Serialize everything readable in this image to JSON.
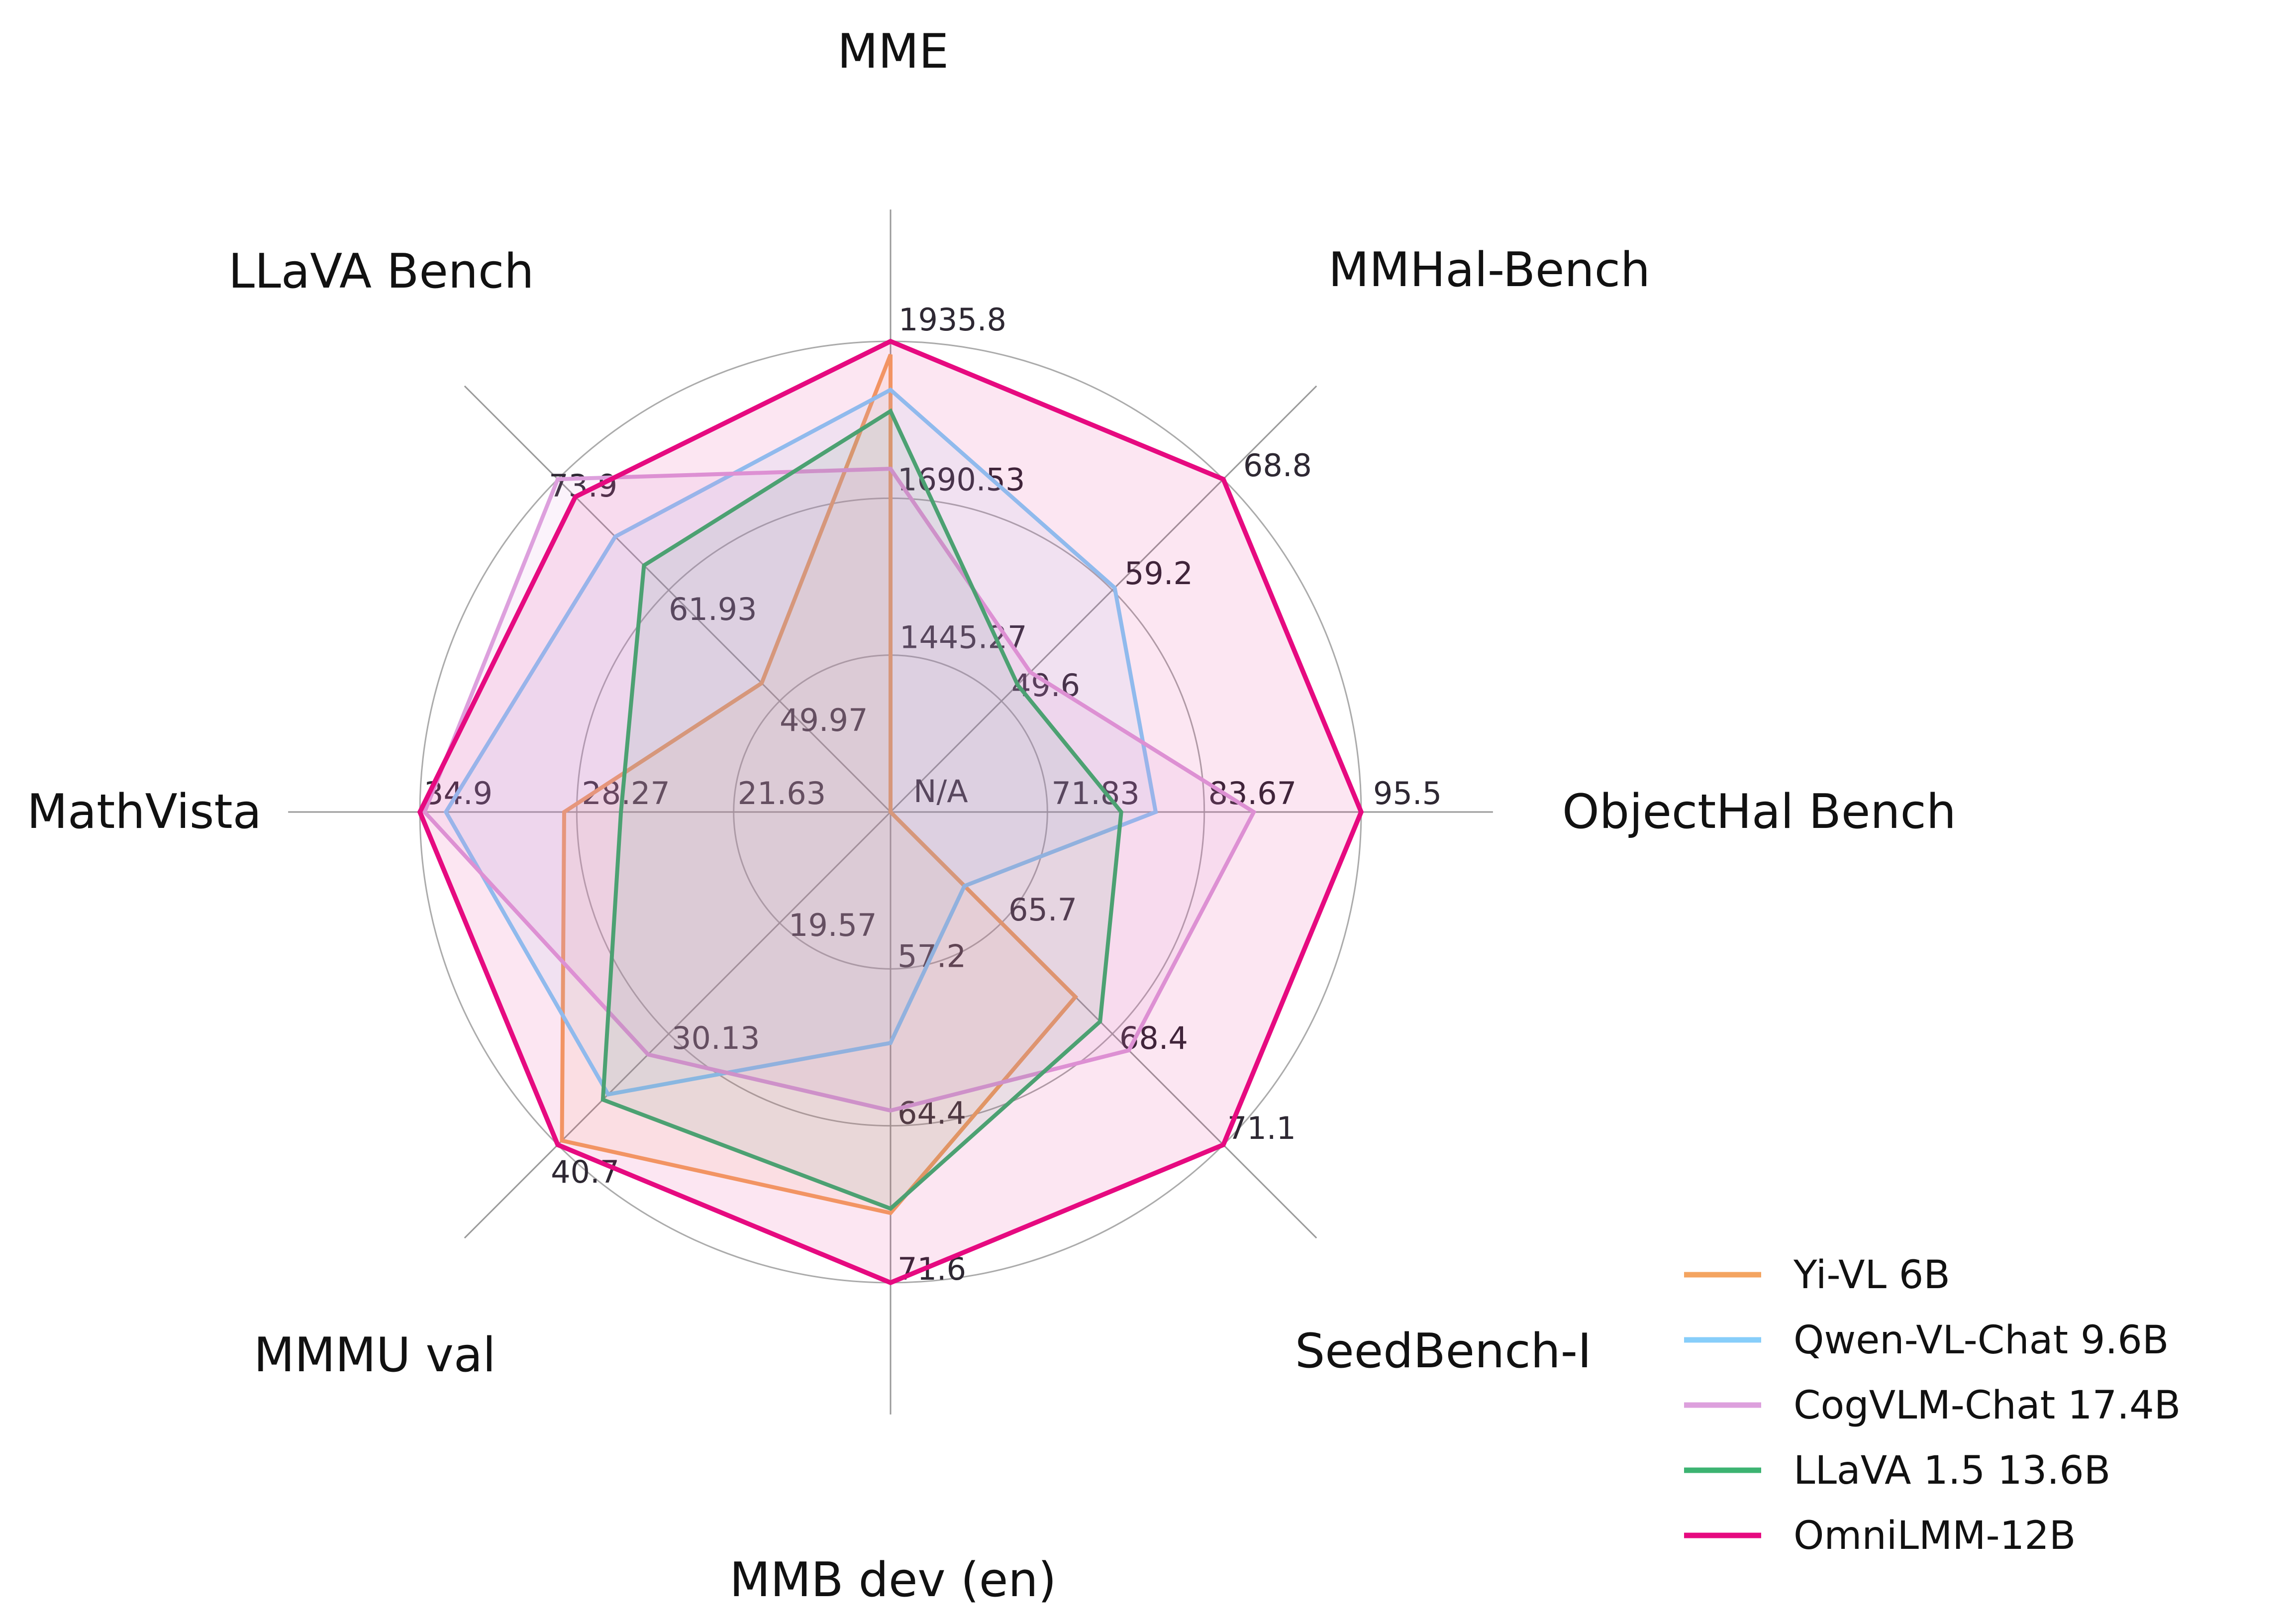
{
  "chart_data": {
    "type": "radar",
    "title": "",
    "grid": true,
    "rings": 3,
    "legend_position": "lower right",
    "center_label": "N/A",
    "axes": [
      {
        "label": "MME",
        "center_value": 1200.0,
        "max": 1935.8,
        "ticks": [
          "1445.27",
          "1690.53",
          "1935.8"
        ]
      },
      {
        "label": "MMHal-Bench",
        "center_value": 40.0,
        "max": 68.8,
        "ticks": [
          "49.6",
          "59.2",
          "68.8"
        ]
      },
      {
        "label": "ObjectHal Bench",
        "center_value": 60.0,
        "max": 95.5,
        "ticks": [
          "71.83",
          "83.67",
          "95.5"
        ],
        "center_tick": "N/A"
      },
      {
        "label": "SeedBench-I",
        "center_value": 63.0,
        "max": 71.1,
        "ticks": [
          "65.7",
          "68.4",
          "71.1"
        ]
      },
      {
        "label": "MMB dev (en)",
        "center_value": 50.0,
        "max": 71.6,
        "ticks": [
          "57.2",
          "64.4",
          "71.6"
        ]
      },
      {
        "label": "MMMU val",
        "center_value": 9.0,
        "max": 40.7,
        "ticks": [
          "19.57",
          "30.13",
          "40.7"
        ]
      },
      {
        "label": "MathVista",
        "center_value": 15.0,
        "max": 34.9,
        "ticks": [
          "21.63",
          "28.27",
          "34.9"
        ]
      },
      {
        "label": "LLaVA Bench",
        "center_value": 38.0,
        "max": 73.9,
        "ticks": [
          "49.97",
          "61.93",
          "73.9"
        ]
      }
    ],
    "series": [
      {
        "name": "Yi-VL 6B",
        "color": "#F4A460",
        "fill_opacity": 0.1,
        "values": [
          1915.1,
          "N/A",
          "N/A",
          67.5,
          68.4,
          40.3,
          28.8,
          51.9
        ]
      },
      {
        "name": "Qwen-VL-Chat 9.6B",
        "color": "#87CEFA",
        "fill_opacity": 0.1,
        "values": [
          1860.0,
          59.4,
          80.0,
          64.8,
          60.6,
          35.9,
          33.8,
          67.7
        ]
      },
      {
        "name": "CogVLM-Chat 17.4B",
        "color": "#DDA0DD",
        "fill_opacity": 0.12,
        "values": [
          1736.6,
          52.1,
          87.4,
          68.8,
          63.7,
          32.1,
          34.7,
          73.9
        ]
      },
      {
        "name": "LLaVA 1.5 13.6B",
        "color": "#3CB371",
        "fill_opacity": 0.1,
        "values": [
          1826.7,
          51.0,
          77.4,
          68.1,
          68.2,
          36.4,
          26.4,
          64.6
        ]
      },
      {
        "name": "OmniLMM-12B",
        "color": "#E60A80",
        "fill_opacity": 0.1,
        "values": [
          1935.8,
          68.8,
          95.5,
          71.1,
          71.6,
          40.7,
          34.9,
          72.0
        ]
      }
    ]
  },
  "legend": {
    "entries": [
      "Yi-VL 6B",
      "Qwen-VL-Chat 9.6B",
      "CogVLM-Chat 17.4B",
      "LLaVA 1.5 13.6B",
      "OmniLMM-12B"
    ]
  }
}
